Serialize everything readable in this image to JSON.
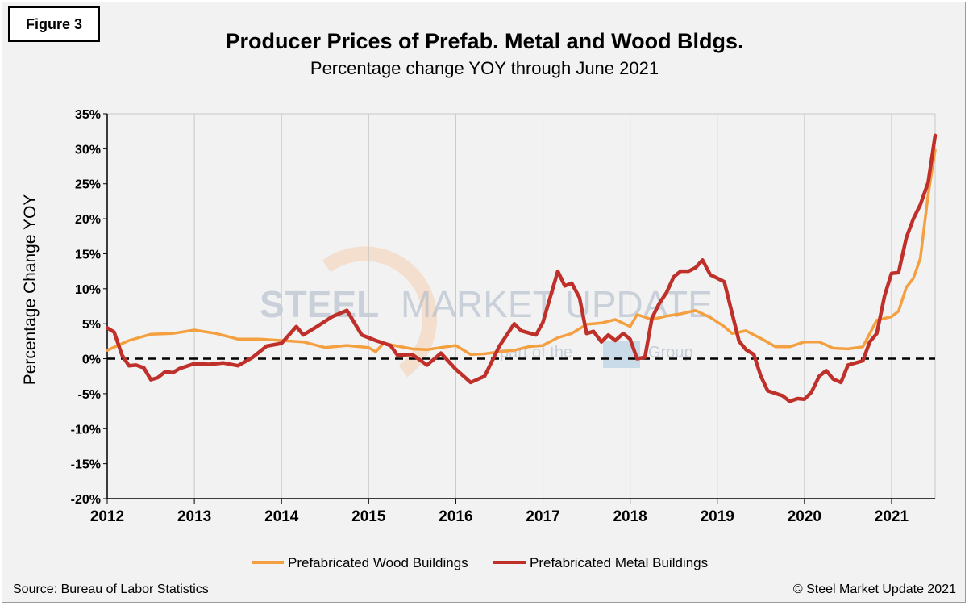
{
  "figure_label": "Figure 3",
  "source": "Source: Bureau of Labor Statistics",
  "copyright": "© Steel Market Update 2021",
  "watermark": {
    "line1_bold": "STEEL",
    "line1_rest": "MARKET UPDATE",
    "line2_pre": "part of the",
    "line2_post": "Group"
  },
  "colors": {
    "wood": "#F4A040",
    "metal": "#C0302A",
    "grid": "#c8c8c8",
    "background": "#f2f2f2"
  },
  "chart_data": {
    "type": "line",
    "title": "Producer Prices of Prefab. Metal and Wood Bldgs.",
    "subtitle": "Percentage change YOY through June 2021",
    "xlabel": "",
    "ylabel": "Percentage Change YOY",
    "ylim": [
      -20,
      35
    ],
    "yticks": [
      -20,
      -15,
      -10,
      -5,
      0,
      5,
      10,
      15,
      20,
      25,
      30,
      35
    ],
    "ytick_labels": [
      "-20%",
      "-15%",
      "-10%",
      "-5%",
      "0%",
      "5%",
      "10%",
      "15%",
      "20%",
      "25%",
      "30%",
      "35%"
    ],
    "xlim": [
      2012.0,
      2021.5
    ],
    "xticks": [
      2012,
      2013,
      2014,
      2015,
      2016,
      2017,
      2018,
      2019,
      2020,
      2021
    ],
    "xtick_labels": [
      "2012",
      "2013",
      "2014",
      "2015",
      "2016",
      "2017",
      "2018",
      "2019",
      "2020",
      "2021"
    ],
    "zero_line": "dashed",
    "grid": "vertical",
    "legend_position": "bottom-center",
    "series": [
      {
        "name": "Prefabricated Wood Buildings",
        "color": "#F4A040",
        "points": [
          [
            2012.0,
            1.2
          ],
          [
            2012.25,
            2.6
          ],
          [
            2012.5,
            3.5
          ],
          [
            2012.75,
            3.6
          ],
          [
            2013.0,
            4.1
          ],
          [
            2013.25,
            3.6
          ],
          [
            2013.5,
            2.8
          ],
          [
            2013.75,
            2.8
          ],
          [
            2014.0,
            2.6
          ],
          [
            2014.25,
            2.4
          ],
          [
            2014.5,
            1.6
          ],
          [
            2014.75,
            1.9
          ],
          [
            2015.0,
            1.6
          ],
          [
            2015.08,
            1.0
          ],
          [
            2015.17,
            2.2
          ],
          [
            2015.33,
            1.8
          ],
          [
            2015.5,
            1.4
          ],
          [
            2015.67,
            1.3
          ],
          [
            2015.83,
            1.6
          ],
          [
            2016.0,
            1.9
          ],
          [
            2016.17,
            0.6
          ],
          [
            2016.33,
            0.7
          ],
          [
            2016.5,
            1.0
          ],
          [
            2016.67,
            1.2
          ],
          [
            2016.83,
            1.7
          ],
          [
            2017.0,
            1.9
          ],
          [
            2017.17,
            3.0
          ],
          [
            2017.33,
            3.6
          ],
          [
            2017.5,
            4.9
          ],
          [
            2017.67,
            5.1
          ],
          [
            2017.83,
            5.6
          ],
          [
            2018.0,
            4.6
          ],
          [
            2018.08,
            6.3
          ],
          [
            2018.25,
            5.6
          ],
          [
            2018.42,
            6.1
          ],
          [
            2018.58,
            6.4
          ],
          [
            2018.75,
            6.9
          ],
          [
            2018.92,
            5.9
          ],
          [
            2019.08,
            4.6
          ],
          [
            2019.17,
            3.6
          ],
          [
            2019.33,
            4.0
          ],
          [
            2019.5,
            2.9
          ],
          [
            2019.67,
            1.7
          ],
          [
            2019.83,
            1.7
          ],
          [
            2020.0,
            2.4
          ],
          [
            2020.17,
            2.4
          ],
          [
            2020.33,
            1.5
          ],
          [
            2020.5,
            1.4
          ],
          [
            2020.67,
            1.7
          ],
          [
            2020.83,
            5.5
          ],
          [
            2021.0,
            6.0
          ],
          [
            2021.08,
            6.8
          ],
          [
            2021.17,
            10.2
          ],
          [
            2021.25,
            11.5
          ],
          [
            2021.33,
            14.3
          ],
          [
            2021.42,
            23.5
          ],
          [
            2021.5,
            29.8
          ]
        ]
      },
      {
        "name": "Prefabricated Metal Buildings",
        "color": "#C0302A",
        "points": [
          [
            2012.0,
            4.4
          ],
          [
            2012.08,
            3.8
          ],
          [
            2012.17,
            0.5
          ],
          [
            2012.25,
            -1.0
          ],
          [
            2012.33,
            -0.9
          ],
          [
            2012.42,
            -1.3
          ],
          [
            2012.5,
            -3.0
          ],
          [
            2012.58,
            -2.7
          ],
          [
            2012.67,
            -1.8
          ],
          [
            2012.75,
            -2.0
          ],
          [
            2012.83,
            -1.4
          ],
          [
            2013.0,
            -0.7
          ],
          [
            2013.17,
            -0.8
          ],
          [
            2013.33,
            -0.6
          ],
          [
            2013.5,
            -1.0
          ],
          [
            2013.67,
            0.2
          ],
          [
            2013.83,
            1.8
          ],
          [
            2014.0,
            2.2
          ],
          [
            2014.17,
            4.6
          ],
          [
            2014.25,
            3.4
          ],
          [
            2014.42,
            4.7
          ],
          [
            2014.58,
            6.0
          ],
          [
            2014.75,
            6.9
          ],
          [
            2014.92,
            3.4
          ],
          [
            2015.08,
            2.6
          ],
          [
            2015.25,
            1.9
          ],
          [
            2015.33,
            0.5
          ],
          [
            2015.5,
            0.6
          ],
          [
            2015.67,
            -0.9
          ],
          [
            2015.83,
            0.8
          ],
          [
            2016.0,
            -1.5
          ],
          [
            2016.17,
            -3.4
          ],
          [
            2016.33,
            -2.5
          ],
          [
            2016.5,
            1.8
          ],
          [
            2016.67,
            5.0
          ],
          [
            2016.75,
            4.0
          ],
          [
            2016.92,
            3.4
          ],
          [
            2017.0,
            5.2
          ],
          [
            2017.17,
            12.5
          ],
          [
            2017.25,
            10.4
          ],
          [
            2017.33,
            10.8
          ],
          [
            2017.42,
            8.7
          ],
          [
            2017.5,
            3.6
          ],
          [
            2017.58,
            3.9
          ],
          [
            2017.67,
            2.4
          ],
          [
            2017.75,
            3.4
          ],
          [
            2017.83,
            2.6
          ],
          [
            2017.92,
            3.6
          ],
          [
            2018.0,
            2.8
          ],
          [
            2018.08,
            0.0
          ],
          [
            2018.17,
            0.2
          ],
          [
            2018.25,
            5.8
          ],
          [
            2018.33,
            7.8
          ],
          [
            2018.42,
            9.5
          ],
          [
            2018.5,
            11.7
          ],
          [
            2018.58,
            12.5
          ],
          [
            2018.67,
            12.5
          ],
          [
            2018.75,
            13.0
          ],
          [
            2018.83,
            14.1
          ],
          [
            2018.92,
            12.0
          ],
          [
            2019.08,
            11.0
          ],
          [
            2019.17,
            6.5
          ],
          [
            2019.25,
            2.5
          ],
          [
            2019.33,
            1.3
          ],
          [
            2019.42,
            0.6
          ],
          [
            2019.5,
            -2.5
          ],
          [
            2019.58,
            -4.6
          ],
          [
            2019.75,
            -5.3
          ],
          [
            2019.83,
            -6.1
          ],
          [
            2019.92,
            -5.7
          ],
          [
            2020.0,
            -5.8
          ],
          [
            2020.08,
            -4.8
          ],
          [
            2020.17,
            -2.5
          ],
          [
            2020.25,
            -1.7
          ],
          [
            2020.33,
            -2.9
          ],
          [
            2020.42,
            -3.4
          ],
          [
            2020.5,
            -0.9
          ],
          [
            2020.67,
            -0.3
          ],
          [
            2020.75,
            2.4
          ],
          [
            2020.83,
            3.6
          ],
          [
            2020.92,
            9.0
          ],
          [
            2021.0,
            12.2
          ],
          [
            2021.08,
            12.3
          ],
          [
            2021.17,
            17.3
          ],
          [
            2021.25,
            20.0
          ],
          [
            2021.33,
            22.0
          ],
          [
            2021.42,
            25.2
          ],
          [
            2021.5,
            31.9
          ]
        ]
      }
    ]
  }
}
